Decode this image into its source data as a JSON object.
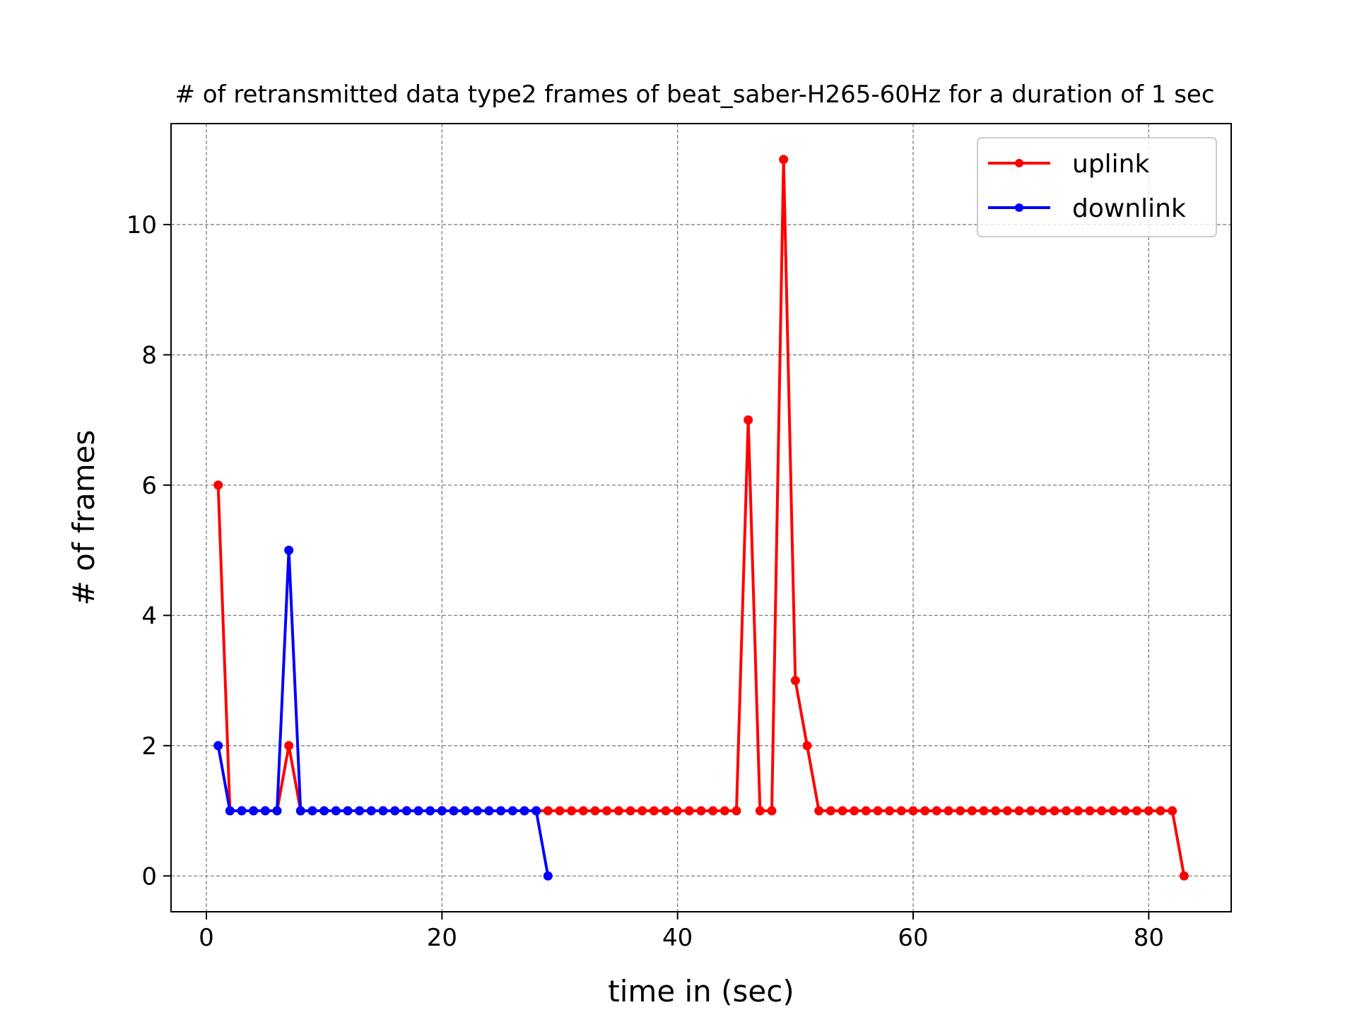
{
  "chart_data": {
    "type": "line",
    "title": "# of retransmitted data type2 frames of beat_saber-H265-60Hz for a duration of 1 sec",
    "xlabel": "time in (sec)",
    "ylabel": "# of frames",
    "xlim": [
      -3,
      87
    ],
    "ylim": [
      -0.55,
      11.55
    ],
    "xticks": [
      0,
      20,
      40,
      60,
      80
    ],
    "yticks": [
      0,
      2,
      4,
      6,
      8,
      10
    ],
    "grid": true,
    "legend_position": "top-right",
    "series": [
      {
        "name": "uplink",
        "color": "#ff0000",
        "x": [
          1,
          2,
          3,
          4,
          5,
          6,
          7,
          8,
          9,
          10,
          11,
          12,
          13,
          14,
          15,
          16,
          17,
          18,
          19,
          20,
          21,
          22,
          23,
          24,
          25,
          26,
          27,
          28,
          29,
          30,
          31,
          32,
          33,
          34,
          35,
          36,
          37,
          38,
          39,
          40,
          41,
          42,
          43,
          44,
          45,
          46,
          47,
          48,
          49,
          50,
          51,
          52,
          53,
          54,
          55,
          56,
          57,
          58,
          59,
          60,
          61,
          62,
          63,
          64,
          65,
          66,
          67,
          68,
          69,
          70,
          71,
          72,
          73,
          74,
          75,
          76,
          77,
          78,
          79,
          80,
          81,
          82,
          83
        ],
        "y": [
          6,
          1,
          1,
          1,
          1,
          1,
          2,
          1,
          1,
          1,
          1,
          1,
          1,
          1,
          1,
          1,
          1,
          1,
          1,
          1,
          1,
          1,
          1,
          1,
          1,
          1,
          1,
          1,
          1,
          1,
          1,
          1,
          1,
          1,
          1,
          1,
          1,
          1,
          1,
          1,
          1,
          1,
          1,
          1,
          1,
          7,
          1,
          1,
          11,
          3,
          2,
          1,
          1,
          1,
          1,
          1,
          1,
          1,
          1,
          1,
          1,
          1,
          1,
          1,
          1,
          1,
          1,
          1,
          1,
          1,
          1,
          1,
          1,
          1,
          1,
          1,
          1,
          1,
          1,
          1,
          1,
          1,
          0
        ]
      },
      {
        "name": "downlink",
        "color": "#0000ff",
        "x": [
          1,
          2,
          3,
          4,
          5,
          6,
          7,
          8,
          9,
          10,
          11,
          12,
          13,
          14,
          15,
          16,
          17,
          18,
          19,
          20,
          21,
          22,
          23,
          24,
          25,
          26,
          27,
          28,
          29
        ],
        "y": [
          2,
          1,
          1,
          1,
          1,
          1,
          5,
          1,
          1,
          1,
          1,
          1,
          1,
          1,
          1,
          1,
          1,
          1,
          1,
          1,
          1,
          1,
          1,
          1,
          1,
          1,
          1,
          1,
          0
        ]
      }
    ]
  }
}
